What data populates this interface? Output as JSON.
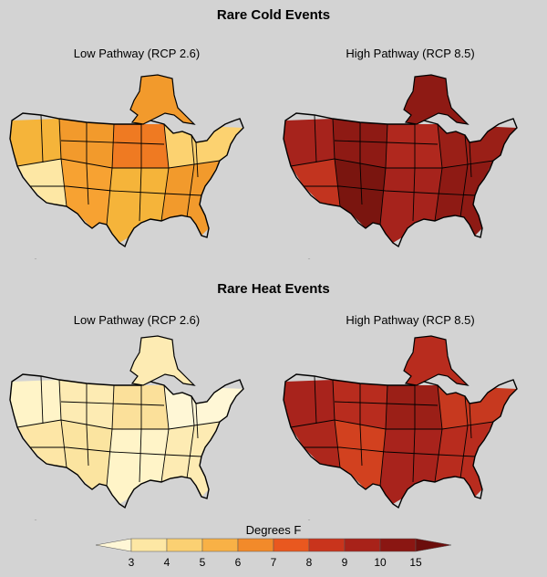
{
  "sections": [
    {
      "title": "Rare Cold Events",
      "panels": [
        {
          "label": "Low Pathway (RCP 2.6)",
          "palette": [
            "#f5b43a",
            "#f29a2c",
            "#ef7a22",
            "#fcd270",
            "#fde7a4",
            "#f7a232"
          ]
        },
        {
          "label": "High Pathway (RCP 8.5)",
          "palette": [
            "#a6231c",
            "#8e1a14",
            "#b0281e",
            "#9a1f17",
            "#c2341f",
            "#7a150f"
          ]
        }
      ]
    },
    {
      "title": "Rare Heat Events",
      "panels": [
        {
          "label": "Low Pathway (RCP 2.6)",
          "palette": [
            "#fff4c8",
            "#fdebb3",
            "#fbe09a",
            "#fff7d6",
            "#fde6a6",
            "#fbe4a0"
          ]
        },
        {
          "label": "High Pathway (RCP 8.5)",
          "palette": [
            "#a8231c",
            "#b82c1e",
            "#9b1f17",
            "#c7391f",
            "#ad271c",
            "#d2411f"
          ]
        }
      ]
    }
  ],
  "legend": {
    "title": "Degrees F",
    "ticks": [
      "3",
      "4",
      "5",
      "6",
      "7",
      "8",
      "9",
      "10",
      "15"
    ],
    "colors": [
      "#fff7d6",
      "#fde7a4",
      "#fbd072",
      "#f8b146",
      "#f28a2a",
      "#e9581f",
      "#c9341c",
      "#a82219",
      "#8a1612",
      "#6b0e0c"
    ]
  }
}
